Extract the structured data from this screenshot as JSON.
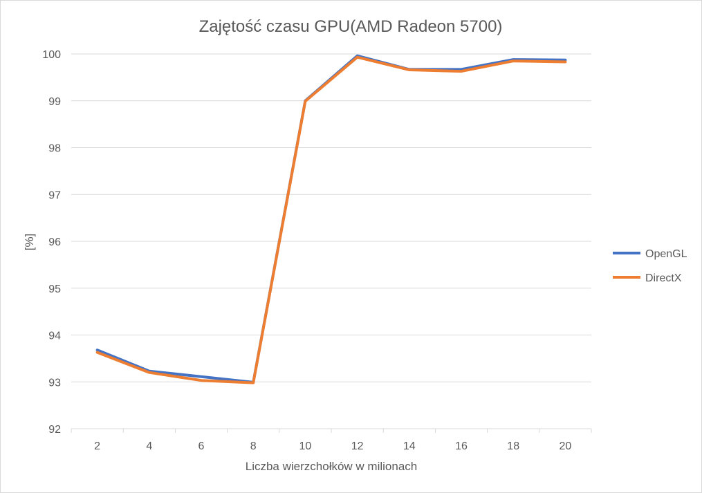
{
  "chart_data": {
    "type": "line",
    "title": "Zajętość czasu GPU(AMD Radeon 5700)",
    "xlabel": "Liczba wierzchołków w milionach",
    "ylabel": "[%]",
    "categories": [
      "2",
      "4",
      "6",
      "8",
      "10",
      "12",
      "14",
      "16",
      "18",
      "20"
    ],
    "ylim": [
      92,
      100
    ],
    "yticks": [
      "92",
      "93",
      "94",
      "95",
      "96",
      "97",
      "98",
      "99",
      "100"
    ],
    "grid": "horizontal",
    "legend_position": "right",
    "series": [
      {
        "name": "OpenGL",
        "color": "#4472c4",
        "values": [
          93.68,
          93.23,
          93.11,
          92.99,
          99.0,
          99.96,
          99.67,
          99.67,
          99.88,
          99.87
        ]
      },
      {
        "name": "DirectX",
        "color": "#ed7d31",
        "values": [
          93.63,
          93.2,
          93.03,
          92.98,
          98.99,
          99.93,
          99.66,
          99.63,
          99.85,
          99.83
        ]
      }
    ]
  }
}
